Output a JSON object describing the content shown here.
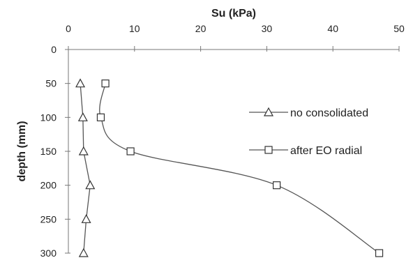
{
  "chart_data": {
    "type": "line",
    "title": "",
    "xlabel": "Su (kPa)",
    "ylabel": "depth (mm)",
    "x_axis_position": "top",
    "y_axis_inverted": true,
    "xlim": [
      0,
      50
    ],
    "ylim": [
      0,
      300
    ],
    "x_ticks": [
      0,
      10,
      20,
      30,
      40,
      50
    ],
    "y_ticks": [
      0,
      50,
      100,
      150,
      200,
      250,
      300
    ],
    "x_tick_labels": [
      "0",
      "10",
      "20",
      "30",
      "40",
      "50"
    ],
    "y_tick_labels": [
      "0",
      "50",
      "100",
      "150",
      "200",
      "250",
      "300"
    ],
    "grid": false,
    "legend_position": "right",
    "series": [
      {
        "name": "no consolidated",
        "marker": "triangle",
        "smooth": false,
        "color": "#555555",
        "points": [
          {
            "su": 1.8,
            "depth": 50
          },
          {
            "su": 2.2,
            "depth": 100
          },
          {
            "su": 2.3,
            "depth": 150
          },
          {
            "su": 3.3,
            "depth": 200
          },
          {
            "su": 2.7,
            "depth": 250
          },
          {
            "su": 2.3,
            "depth": 300
          }
        ]
      },
      {
        "name": "after EO radial",
        "marker": "square",
        "smooth": true,
        "color": "#555555",
        "points": [
          {
            "su": 5.6,
            "depth": 50
          },
          {
            "su": 4.9,
            "depth": 100
          },
          {
            "su": 9.4,
            "depth": 150
          },
          {
            "su": 31.5,
            "depth": 200
          },
          {
            "su": 47.0,
            "depth": 300
          }
        ]
      }
    ]
  }
}
